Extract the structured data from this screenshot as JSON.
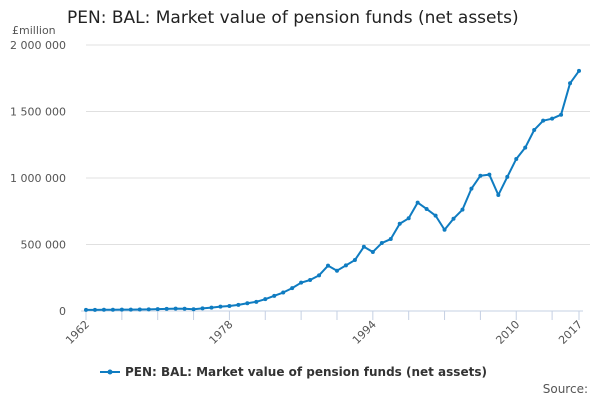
{
  "chart_data": {
    "type": "line",
    "title": "PEN: BAL: Market value of pension funds (net assets)",
    "ylabel": "£million",
    "xlabel": "",
    "ylim": [
      0,
      2000000
    ],
    "xlim": [
      1962,
      2017
    ],
    "yticks": [
      0,
      500000,
      1000000,
      1500000,
      2000000
    ],
    "ytick_labels": [
      "0",
      "500 000",
      "1 000 000",
      "1 500 000",
      "2 000 000"
    ],
    "xtick_labels": [
      "1962",
      "1978",
      "1994",
      "2010",
      "2017"
    ],
    "grid": true,
    "legend_placement": "bottom",
    "color": "#0f7cc1",
    "series": [
      {
        "name": "PEN: BAL: Market value of pension funds (net assets)",
        "x": [
          1962,
          1963,
          1964,
          1965,
          1966,
          1967,
          1968,
          1969,
          1970,
          1971,
          1972,
          1973,
          1974,
          1975,
          1976,
          1977,
          1978,
          1979,
          1980,
          1981,
          1982,
          1983,
          1984,
          1985,
          1986,
          1987,
          1988,
          1989,
          1990,
          1991,
          1992,
          1993,
          1994,
          1995,
          1996,
          1997,
          1998,
          1999,
          2000,
          2001,
          2002,
          2003,
          2004,
          2005,
          2006,
          2007,
          2008,
          2009,
          2010,
          2011,
          2012,
          2013,
          2014,
          2015,
          2016,
          2017
        ],
        "values": [
          8000,
          8500,
          9000,
          9500,
          10000,
          10500,
          11000,
          12000,
          14000,
          16000,
          18000,
          17000,
          13000,
          20000,
          25000,
          33000,
          38000,
          46000,
          58000,
          69000,
          89000,
          114000,
          139000,
          172000,
          213000,
          233000,
          268000,
          341000,
          303000,
          343000,
          383000,
          483000,
          444000,
          511000,
          541000,
          656000,
          697000,
          815000,
          767000,
          717000,
          611000,
          694000,
          762000,
          920000,
          1017000,
          1025000,
          872000,
          1008000,
          1143000,
          1228000,
          1361000,
          1431000,
          1446000,
          1476000,
          1712000,
          1805000
        ]
      }
    ]
  },
  "footer": {
    "source_label": "Source:"
  }
}
